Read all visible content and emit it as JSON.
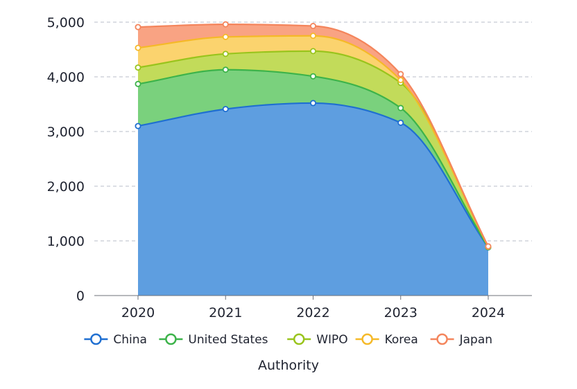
{
  "chart_data": {
    "type": "area",
    "stacked": true,
    "title": "",
    "xlabel": "Authority",
    "ylabel": "",
    "categories": [
      "2020",
      "2021",
      "2022",
      "2023",
      "2024"
    ],
    "ylim": [
      0,
      5000
    ],
    "yticks": [
      0,
      1000,
      2000,
      3000,
      4000,
      5000
    ],
    "ytick_labels": [
      "0",
      "1,000",
      "2,000",
      "3,000",
      "4,000",
      "5,000"
    ],
    "grid": true,
    "legend": "bottom",
    "series": [
      {
        "name": "China",
        "values": [
          3100,
          3410,
          3520,
          3160,
          880
        ],
        "line_color": "#1f6fd1",
        "fill_color": "#5e9ee0"
      },
      {
        "name": "United States",
        "values": [
          770,
          720,
          490,
          270,
          5
        ],
        "line_color": "#3cb34a",
        "fill_color": "#7ad17d"
      },
      {
        "name": "WIPO",
        "values": [
          300,
          290,
          460,
          460,
          5
        ],
        "line_color": "#99c41c",
        "fill_color": "#c2db5a"
      },
      {
        "name": "Korea",
        "values": [
          360,
          310,
          280,
          50,
          5
        ],
        "line_color": "#f5b928",
        "fill_color": "#fbd36e"
      },
      {
        "name": "Japan",
        "values": [
          380,
          230,
          180,
          110,
          5
        ],
        "line_color": "#f4855c",
        "fill_color": "#f9a383"
      }
    ]
  }
}
